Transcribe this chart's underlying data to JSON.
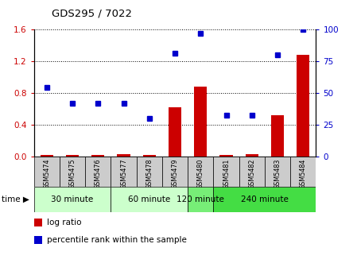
{
  "title": "GDS295 / 7022",
  "samples": [
    "GSM5474",
    "GSM5475",
    "GSM5476",
    "GSM5477",
    "GSM5478",
    "GSM5479",
    "GSM5480",
    "GSM5481",
    "GSM5482",
    "GSM5483",
    "GSM5484"
  ],
  "log_ratio": [
    0.02,
    0.02,
    0.02,
    0.03,
    0.02,
    0.62,
    0.88,
    0.02,
    0.03,
    0.52,
    1.28
  ],
  "percentile_rank": [
    54,
    42,
    42,
    42,
    30,
    81,
    97,
    32,
    32,
    80,
    100
  ],
  "time_groups": [
    {
      "label": "30 minute",
      "start": 0,
      "end": 3,
      "color": "#ccffcc"
    },
    {
      "label": "60 minute",
      "start": 3,
      "end": 6,
      "color": "#ccffcc"
    },
    {
      "label": "120 minute",
      "start": 6,
      "end": 7,
      "color": "#77ee77"
    },
    {
      "label": "240 minute",
      "start": 7,
      "end": 11,
      "color": "#44dd44"
    }
  ],
  "ylim_left": [
    0,
    1.6
  ],
  "ylim_right": [
    0,
    100
  ],
  "yticks_left": [
    0,
    0.4,
    0.8,
    1.2,
    1.6
  ],
  "yticks_right": [
    0,
    25,
    50,
    75,
    100
  ],
  "bar_color": "#cc0000",
  "dot_color": "#0000cc",
  "sample_box_color": "#cccccc",
  "legend_items": [
    {
      "color": "#cc0000",
      "label": "log ratio"
    },
    {
      "color": "#0000cc",
      "label": "percentile rank within the sample"
    }
  ]
}
